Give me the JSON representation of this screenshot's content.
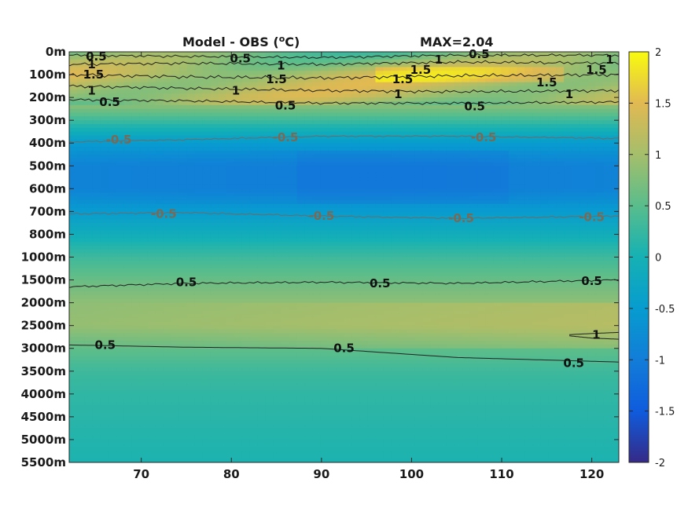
{
  "chart_data": {
    "type": "heatmap",
    "title": "Model - OBS (",
    "title_unit": "o",
    "title_unit_tail": "C)",
    "max_label": "MAX=2.04",
    "x_ticks": [
      70,
      80,
      90,
      100,
      110,
      120
    ],
    "xlim": [
      62,
      123
    ],
    "y_ticks": [
      "0m",
      "100m",
      "200m",
      "300m",
      "400m",
      "500m",
      "600m",
      "700m",
      "800m",
      "1000m",
      "1500m",
      "2000m",
      "2500m",
      "3000m",
      "3500m",
      "4000m",
      "4500m",
      "5000m",
      "5500m"
    ],
    "colorbar": {
      "range": [
        -2,
        2
      ],
      "ticks": [
        "2",
        "1.5",
        "1",
        "0.5",
        "0",
        "-0.5",
        "-1",
        "-1.5",
        "-2"
      ],
      "colormap": "parula"
    },
    "depth_profile": [
      0.6,
      1.2,
      1.1,
      0.3,
      -0.5,
      -0.9,
      -0.9,
      -0.5,
      -0.1,
      0.3,
      0.6,
      0.85,
      0.9,
      0.55,
      0.3,
      0.2,
      0.15,
      0.1,
      0.05
    ],
    "contour_labels": [
      {
        "text": "0.5",
        "x": 65.0,
        "level": 0.2
      },
      {
        "text": "1",
        "x": 64.5,
        "level": 0.55
      },
      {
        "text": "1.5",
        "x": 64.7,
        "level": 1.0
      },
      {
        "text": "1",
        "x": 64.5,
        "level": 1.7
      },
      {
        "text": "0.5",
        "x": 66.5,
        "level": 2.2
      },
      {
        "text": "0.5",
        "x": 81.0,
        "level": 0.3
      },
      {
        "text": "1",
        "x": 85.5,
        "level": 0.6
      },
      {
        "text": "1.5",
        "x": 85.0,
        "level": 1.2
      },
      {
        "text": "1",
        "x": 80.5,
        "level": 1.7
      },
      {
        "text": "0.5",
        "x": 86.0,
        "level": 2.35
      },
      {
        "text": "1.5",
        "x": 101.0,
        "level": 0.8
      },
      {
        "text": "1.5",
        "x": 99.0,
        "level": 1.2
      },
      {
        "text": "1",
        "x": 98.5,
        "level": 1.85
      },
      {
        "text": "1",
        "x": 103.0,
        "level": 0.35
      },
      {
        "text": "0.5",
        "x": 107.5,
        "level": 0.1
      },
      {
        "text": "0.5",
        "x": 107.0,
        "level": 2.4
      },
      {
        "text": "1.5",
        "x": 115.0,
        "level": 1.35
      },
      {
        "text": "1",
        "x": 117.5,
        "level": 1.85
      },
      {
        "text": "1.5",
        "x": 120.5,
        "level": 0.8
      },
      {
        "text": "1",
        "x": 122.0,
        "level": 0.35
      },
      {
        "text": "-0.5",
        "x": 67.5,
        "level": 3.85
      },
      {
        "text": "-0.5",
        "x": 86.0,
        "level": 3.75
      },
      {
        "text": "-0.5",
        "x": 108.0,
        "level": 3.75
      },
      {
        "text": "-0.5",
        "x": 72.5,
        "level": 7.1
      },
      {
        "text": "-0.5",
        "x": 90.0,
        "level": 7.2
      },
      {
        "text": "-0.5",
        "x": 105.5,
        "level": 7.3
      },
      {
        "text": "-0.5",
        "x": 120.0,
        "level": 7.25
      },
      {
        "text": "0.5",
        "x": 75.0,
        "level": 10.1
      },
      {
        "text": "0.5",
        "x": 96.5,
        "level": 10.15
      },
      {
        "text": "0.5",
        "x": 120.0,
        "level": 10.05
      },
      {
        "text": "1",
        "x": 120.5,
        "level": 12.4
      },
      {
        "text": "0.5",
        "x": 66.0,
        "level": 12.85
      },
      {
        "text": "0.5",
        "x": 92.5,
        "level": 13.0
      },
      {
        "text": "0.5",
        "x": 118.0,
        "level": 13.65
      }
    ],
    "contour_lines": [
      {
        "color": "#222222",
        "points": [
          [
            62,
            0.15
          ],
          [
            75,
            0.2
          ],
          [
            90,
            0.25
          ],
          [
            105,
            0.15
          ],
          [
            123,
            0.15
          ]
        ],
        "wiggle": 1.2
      },
      {
        "color": "#222222",
        "points": [
          [
            62,
            0.55
          ],
          [
            75,
            0.5
          ],
          [
            90,
            0.55
          ],
          [
            105,
            0.45
          ],
          [
            123,
            0.5
          ]
        ],
        "wiggle": 1.4
      },
      {
        "color": "#222222",
        "points": [
          [
            62,
            1.0
          ],
          [
            75,
            1.1
          ],
          [
            90,
            1.15
          ],
          [
            105,
            1.05
          ],
          [
            123,
            1.0
          ]
        ],
        "wiggle": 1.6
      },
      {
        "color": "#222222",
        "points": [
          [
            62,
            1.5
          ],
          [
            75,
            1.6
          ],
          [
            90,
            1.7
          ],
          [
            105,
            1.75
          ],
          [
            123,
            1.7
          ]
        ],
        "wiggle": 1.4
      },
      {
        "color": "#222222",
        "points": [
          [
            62,
            2.1
          ],
          [
            75,
            2.15
          ],
          [
            90,
            2.25
          ],
          [
            105,
            2.25
          ],
          [
            123,
            2.2
          ]
        ],
        "wiggle": 1.2
      },
      {
        "color": "#6b6b6b",
        "points": [
          [
            62,
            3.95
          ],
          [
            75,
            3.85
          ],
          [
            90,
            3.7
          ],
          [
            105,
            3.7
          ],
          [
            123,
            3.8
          ]
        ],
        "wiggle": 0.6
      },
      {
        "color": "#6b6b6b",
        "points": [
          [
            62,
            7.1
          ],
          [
            75,
            7.05
          ],
          [
            90,
            7.2
          ],
          [
            105,
            7.3
          ],
          [
            123,
            7.2
          ]
        ],
        "wiggle": 0.6
      },
      {
        "color": "#222222",
        "points": [
          [
            62,
            10.3
          ],
          [
            75,
            10.15
          ],
          [
            90,
            10.1
          ],
          [
            105,
            10.15
          ],
          [
            123,
            10.0
          ]
        ],
        "wiggle": 0.9
      },
      {
        "color": "#222222",
        "points": [
          [
            62,
            12.85
          ],
          [
            75,
            12.95
          ],
          [
            90,
            13.0
          ],
          [
            105,
            13.4
          ],
          [
            123,
            13.6
          ]
        ],
        "wiggle": 0.0
      },
      {
        "color": "#222222",
        "points": [
          [
            117.5,
            12.4
          ],
          [
            120,
            12.35
          ],
          [
            123,
            12.3
          ]
        ],
        "wiggle": 0.0
      },
      {
        "color": "#222222",
        "points": [
          [
            117.5,
            12.45
          ],
          [
            120,
            12.55
          ],
          [
            123,
            12.6
          ]
        ],
        "wiggle": 0.0
      }
    ]
  }
}
